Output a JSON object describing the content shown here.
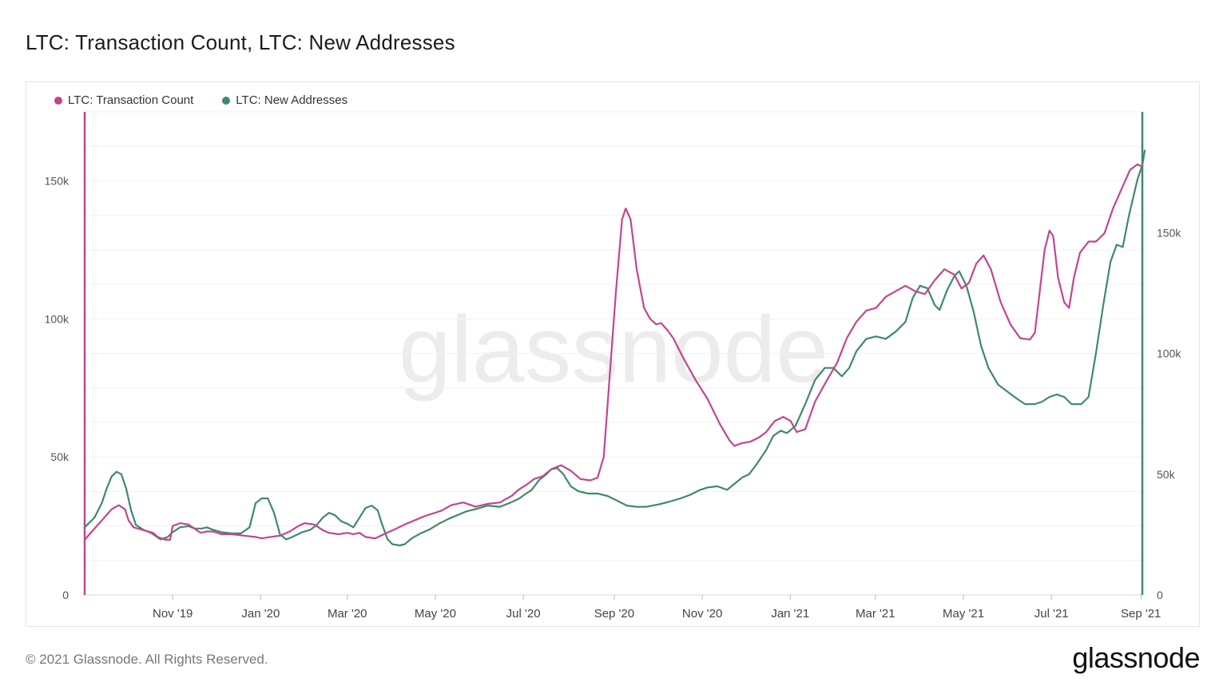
{
  "page": {
    "title": "LTC: Transaction Count, LTC: New Addresses",
    "copyright": "© 2021 Glassnode. All Rights Reserved.",
    "logo_text": "glassnode",
    "watermark_text": "glassnode"
  },
  "legend": [
    {
      "label": "LTC: Transaction Count",
      "color": "#c2468f"
    },
    {
      "label": "LTC: New Addresses",
      "color": "#3f8a6a"
    }
  ],
  "chart_data": {
    "type": "line",
    "title": "LTC: Transaction Count, LTC: New Addresses",
    "x_ticks": [
      "Nov '19",
      "Jan '20",
      "Mar '20",
      "May '20",
      "Jul '20",
      "Sep '20",
      "Nov '20",
      "Jan '21",
      "Mar '21",
      "May '21",
      "Jul '21",
      "Sep '21"
    ],
    "x_tick_days": [
      61,
      122,
      182,
      243,
      304,
      367,
      428,
      489,
      548,
      609,
      670,
      732
    ],
    "x_range_days": [
      0,
      733
    ],
    "x_start_label": "2019-09-01 (day 0)",
    "y_left": {
      "ticks": [
        "0",
        "50k",
        "100k",
        "150k"
      ],
      "tick_values": [
        0,
        50000,
        100000,
        150000
      ],
      "range": [
        0,
        175000
      ]
    },
    "y_right": {
      "ticks": [
        "0",
        "50k",
        "100k",
        "150k"
      ],
      "tick_values": [
        0,
        50000,
        100000,
        150000
      ],
      "range": [
        0,
        200000
      ]
    },
    "series": [
      {
        "name": "LTC: Transaction Count",
        "axis": "left",
        "color": "#c2468f",
        "points": [
          [
            0,
            20000
          ],
          [
            8,
            24000
          ],
          [
            16,
            28000
          ],
          [
            22,
            31000
          ],
          [
            28,
            32500
          ],
          [
            33,
            31000
          ],
          [
            36,
            27000
          ],
          [
            40,
            24500
          ],
          [
            48,
            23500
          ],
          [
            56,
            22500
          ],
          [
            60,
            21000
          ],
          [
            66,
            20000
          ],
          [
            70,
            20000
          ],
          [
            72,
            25000
          ],
          [
            78,
            26000
          ],
          [
            85,
            25500
          ],
          [
            90,
            24000
          ],
          [
            95,
            22500
          ],
          [
            100,
            23000
          ],
          [
            105,
            23000
          ],
          [
            112,
            22000
          ],
          [
            120,
            22000
          ],
          [
            130,
            21500
          ],
          [
            140,
            21000
          ],
          [
            145,
            20500
          ],
          [
            152,
            21000
          ],
          [
            160,
            21500
          ],
          [
            168,
            23000
          ],
          [
            175,
            25000
          ],
          [
            180,
            26000
          ],
          [
            188,
            25500
          ],
          [
            195,
            23500
          ],
          [
            200,
            22500
          ],
          [
            208,
            22000
          ],
          [
            215,
            22500
          ],
          [
            220,
            22000
          ],
          [
            225,
            22500
          ],
          [
            230,
            21000
          ],
          [
            238,
            20500
          ],
          [
            245,
            22000
          ],
          [
            255,
            24000
          ],
          [
            262,
            25500
          ],
          [
            270,
            27000
          ],
          [
            278,
            28500
          ],
          [
            285,
            29500
          ],
          [
            292,
            30500
          ],
          [
            300,
            32500
          ],
          [
            310,
            33500
          ],
          [
            320,
            32000
          ],
          [
            330,
            33000
          ],
          [
            340,
            33500
          ],
          [
            350,
            36000
          ],
          [
            355,
            38000
          ],
          [
            362,
            40000
          ],
          [
            368,
            42000
          ],
          [
            375,
            43000
          ],
          [
            382,
            45500
          ],
          [
            390,
            47000
          ],
          [
            398,
            45000
          ],
          [
            406,
            42000
          ],
          [
            414,
            41500
          ],
          [
            420,
            42500
          ],
          [
            425,
            50000
          ],
          [
            430,
            80000
          ],
          [
            435,
            110000
          ],
          [
            440,
            136000
          ],
          [
            443,
            140000
          ],
          [
            447,
            136000
          ],
          [
            452,
            118000
          ],
          [
            458,
            104000
          ],
          [
            463,
            100000
          ],
          [
            468,
            98000
          ],
          [
            472,
            98500
          ],
          [
            477,
            96000
          ],
          [
            482,
            93000
          ],
          [
            490,
            86000
          ],
          [
            500,
            78000
          ],
          [
            510,
            71000
          ],
          [
            520,
            62000
          ],
          [
            528,
            56000
          ],
          [
            532,
            54000
          ],
          [
            538,
            55000
          ],
          [
            545,
            55500
          ],
          [
            552,
            57000
          ],
          [
            558,
            59000
          ],
          [
            565,
            63000
          ],
          [
            572,
            64500
          ],
          [
            578,
            63000
          ],
          [
            583,
            59000
          ],
          [
            590,
            60000
          ],
          [
            598,
            70000
          ],
          [
            608,
            78000
          ],
          [
            616,
            84000
          ],
          [
            624,
            93000
          ],
          [
            632,
            99000
          ],
          [
            640,
            103000
          ],
          [
            648,
            104000
          ],
          [
            656,
            108000
          ],
          [
            664,
            110000
          ],
          [
            672,
            112000
          ],
          [
            680,
            110000
          ],
          [
            688,
            109000
          ],
          [
            696,
            114000
          ],
          [
            704,
            118000
          ],
          [
            712,
            116000
          ],
          [
            718,
            111000
          ],
          [
            724,
            113000
          ],
          [
            730,
            120000
          ],
          [
            736,
            123000
          ],
          [
            742,
            118000
          ],
          [
            750,
            106000
          ],
          [
            758,
            98000
          ],
          [
            766,
            93000
          ],
          [
            774,
            92500
          ],
          [
            778,
            95000
          ],
          [
            782,
            110000
          ],
          [
            786,
            125000
          ],
          [
            790,
            132000
          ],
          [
            793,
            130000
          ],
          [
            797,
            115000
          ],
          [
            802,
            106000
          ],
          [
            806,
            104000
          ],
          [
            810,
            115000
          ],
          [
            815,
            124000
          ],
          [
            822,
            128000
          ],
          [
            828,
            128000
          ],
          [
            835,
            131000
          ],
          [
            842,
            140000
          ],
          [
            850,
            148000
          ],
          [
            856,
            154000
          ],
          [
            862,
            156000
          ],
          [
            866,
            155000
          ]
        ]
      },
      {
        "name": "LTC: New Addresses",
        "axis": "right",
        "color": "#3f8a6a",
        "points": [
          [
            0,
            28000
          ],
          [
            8,
            32000
          ],
          [
            14,
            38000
          ],
          [
            18,
            44000
          ],
          [
            22,
            49000
          ],
          [
            26,
            51000
          ],
          [
            30,
            50000
          ],
          [
            34,
            44000
          ],
          [
            38,
            35000
          ],
          [
            42,
            29000
          ],
          [
            48,
            27000
          ],
          [
            55,
            25500
          ],
          [
            62,
            23000
          ],
          [
            68,
            24000
          ],
          [
            72,
            26000
          ],
          [
            78,
            28000
          ],
          [
            85,
            28500
          ],
          [
            90,
            27500
          ],
          [
            96,
            27500
          ],
          [
            100,
            28000
          ],
          [
            105,
            27000
          ],
          [
            112,
            26000
          ],
          [
            120,
            25500
          ],
          [
            128,
            25500
          ],
          [
            135,
            28000
          ],
          [
            140,
            38000
          ],
          [
            145,
            40000
          ],
          [
            150,
            40000
          ],
          [
            155,
            34000
          ],
          [
            160,
            25000
          ],
          [
            165,
            23000
          ],
          [
            170,
            24000
          ],
          [
            178,
            26000
          ],
          [
            185,
            27000
          ],
          [
            190,
            29000
          ],
          [
            195,
            32000
          ],
          [
            200,
            34000
          ],
          [
            205,
            33000
          ],
          [
            210,
            30500
          ],
          [
            215,
            29500
          ],
          [
            220,
            28000
          ],
          [
            225,
            32000
          ],
          [
            230,
            36000
          ],
          [
            235,
            37000
          ],
          [
            240,
            35000
          ],
          [
            243,
            30000
          ],
          [
            248,
            23000
          ],
          [
            252,
            21000
          ],
          [
            258,
            20500
          ],
          [
            262,
            21000
          ],
          [
            268,
            23500
          ],
          [
            275,
            25500
          ],
          [
            282,
            27000
          ],
          [
            290,
            29500
          ],
          [
            298,
            31500
          ],
          [
            305,
            33000
          ],
          [
            312,
            34500
          ],
          [
            320,
            35500
          ],
          [
            330,
            37000
          ],
          [
            340,
            36500
          ],
          [
            350,
            38500
          ],
          [
            356,
            40000
          ],
          [
            360,
            41500
          ],
          [
            366,
            43500
          ],
          [
            372,
            47500
          ],
          [
            378,
            50000
          ],
          [
            382,
            52000
          ],
          [
            387,
            52500
          ],
          [
            392,
            50000
          ],
          [
            398,
            45000
          ],
          [
            404,
            43000
          ],
          [
            412,
            42000
          ],
          [
            420,
            42000
          ],
          [
            428,
            41000
          ],
          [
            436,
            39000
          ],
          [
            444,
            37000
          ],
          [
            452,
            36500
          ],
          [
            460,
            36500
          ],
          [
            470,
            37500
          ],
          [
            478,
            38500
          ],
          [
            488,
            40000
          ],
          [
            496,
            41500
          ],
          [
            504,
            43500
          ],
          [
            510,
            44500
          ],
          [
            518,
            45000
          ],
          [
            526,
            43500
          ],
          [
            532,
            46000
          ],
          [
            538,
            48500
          ],
          [
            544,
            50000
          ],
          [
            550,
            54000
          ],
          [
            558,
            60000
          ],
          [
            564,
            66000
          ],
          [
            570,
            68000
          ],
          [
            575,
            67000
          ],
          [
            582,
            70000
          ],
          [
            590,
            79000
          ],
          [
            598,
            89000
          ],
          [
            606,
            94000
          ],
          [
            613,
            94000
          ],
          [
            620,
            90500
          ],
          [
            626,
            94000
          ],
          [
            632,
            101000
          ],
          [
            640,
            106000
          ],
          [
            648,
            107000
          ],
          [
            656,
            106000
          ],
          [
            664,
            109000
          ],
          [
            672,
            113000
          ],
          [
            678,
            123000
          ],
          [
            684,
            128000
          ],
          [
            690,
            127000
          ],
          [
            696,
            120000
          ],
          [
            700,
            118000
          ],
          [
            706,
            126000
          ],
          [
            712,
            132000
          ],
          [
            716,
            134000
          ],
          [
            722,
            128000
          ],
          [
            728,
            117000
          ],
          [
            734,
            103000
          ],
          [
            740,
            94000
          ],
          [
            748,
            87000
          ],
          [
            756,
            84000
          ],
          [
            764,
            81000
          ],
          [
            770,
            79000
          ],
          [
            778,
            79000
          ],
          [
            784,
            80000
          ],
          [
            790,
            82000
          ],
          [
            796,
            83000
          ],
          [
            802,
            82000
          ],
          [
            808,
            79000
          ],
          [
            816,
            79000
          ],
          [
            822,
            82000
          ],
          [
            828,
            100000
          ],
          [
            834,
            120000
          ],
          [
            840,
            138000
          ],
          [
            845,
            145000
          ],
          [
            850,
            144000
          ],
          [
            855,
            157000
          ],
          [
            862,
            172000
          ],
          [
            866,
            178000
          ],
          [
            868,
            184000
          ]
        ]
      }
    ],
    "x_domain_points": [
      0,
      866
    ]
  }
}
